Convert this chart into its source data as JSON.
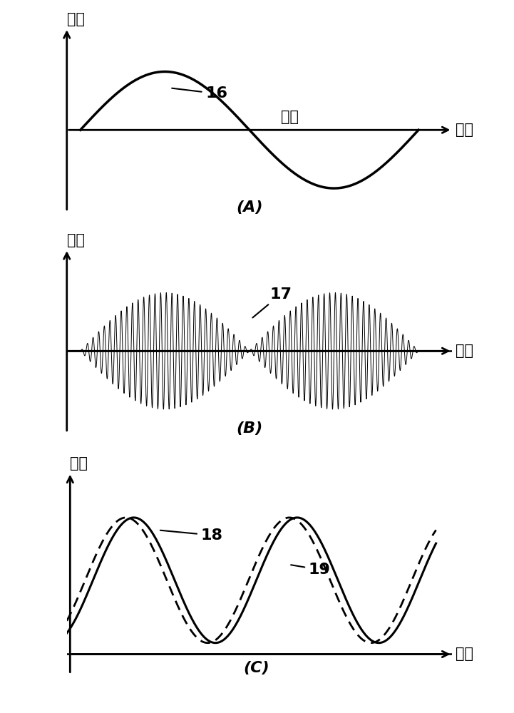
{
  "panel_A": {
    "label": "(A)",
    "ylabel": "幅値",
    "xlabel_mid": "时间",
    "xlabel_tip": "时间",
    "annotation": "16"
  },
  "panel_B": {
    "label": "(B)",
    "ylabel": "幅値",
    "xlabel_tip": "时间",
    "annotation": "17"
  },
  "panel_C": {
    "label": "(C)",
    "ylabel": "幅値",
    "xlabel_tip": "时间",
    "annotation18": "18",
    "annotation19": "19"
  },
  "background_color": "#ffffff",
  "line_color": "#000000",
  "label_fontsize": 15,
  "annotation_fontsize": 16,
  "axis_label_fontsize": 15
}
